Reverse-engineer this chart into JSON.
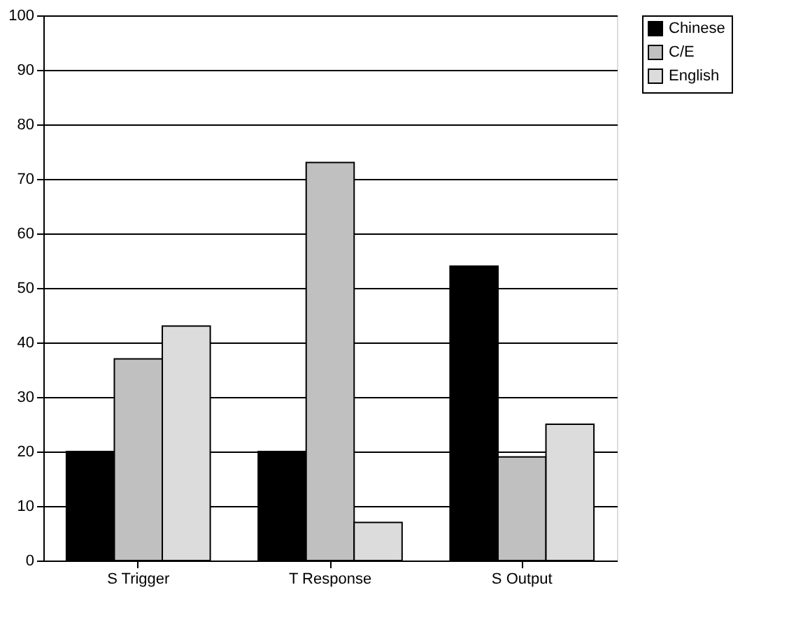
{
  "chart_data": {
    "type": "bar",
    "categories": [
      "S Trigger",
      "T Response",
      "S Output"
    ],
    "series": [
      {
        "name": "Chinese",
        "color": "#000000",
        "values": [
          20,
          20,
          54
        ]
      },
      {
        "name": "C/E",
        "color": "#c0c0c0",
        "values": [
          37,
          73,
          19
        ]
      },
      {
        "name": "English",
        "color": "#dcdcdc",
        "values": [
          43,
          7,
          25
        ]
      }
    ],
    "ylim": [
      0,
      100
    ],
    "yticks": [
      0,
      10,
      20,
      30,
      40,
      50,
      60,
      70,
      80,
      90,
      100
    ],
    "grid": "y",
    "legend": "right"
  }
}
